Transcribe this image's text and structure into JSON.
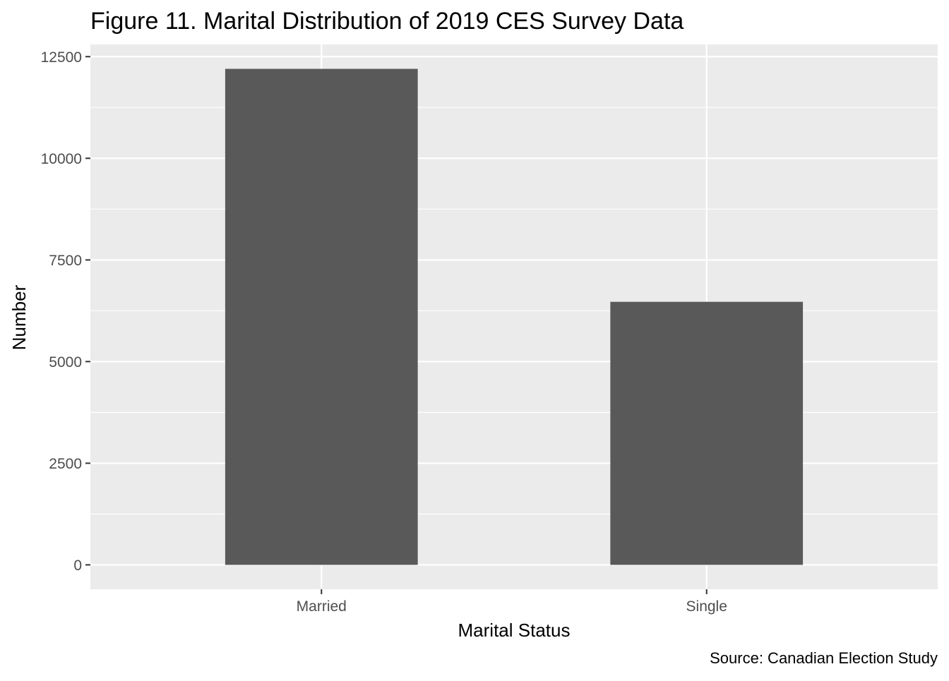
{
  "chart_data": {
    "type": "bar",
    "title": "Figure 11. Marital Distribution of 2019 CES Survey Data",
    "xlabel": "Marital Status",
    "ylabel": "Number",
    "caption": "Source: Canadian Election Study",
    "categories": [
      "Married",
      "Single"
    ],
    "values": [
      12200,
      6470
    ],
    "ylim": [
      -600,
      12800
    ],
    "yticks": [
      0,
      2500,
      5000,
      7500,
      10000,
      12500
    ],
    "ytick_labels": [
      "0",
      "2500",
      "5000",
      "7500",
      "10000",
      "12500"
    ],
    "grid": true,
    "legend": "none",
    "colors": {
      "bar": "#595959",
      "panel": "#ebebeb",
      "grid": "#ffffff",
      "axis_text": "#4d4d4d",
      "text": "#000000"
    }
  }
}
